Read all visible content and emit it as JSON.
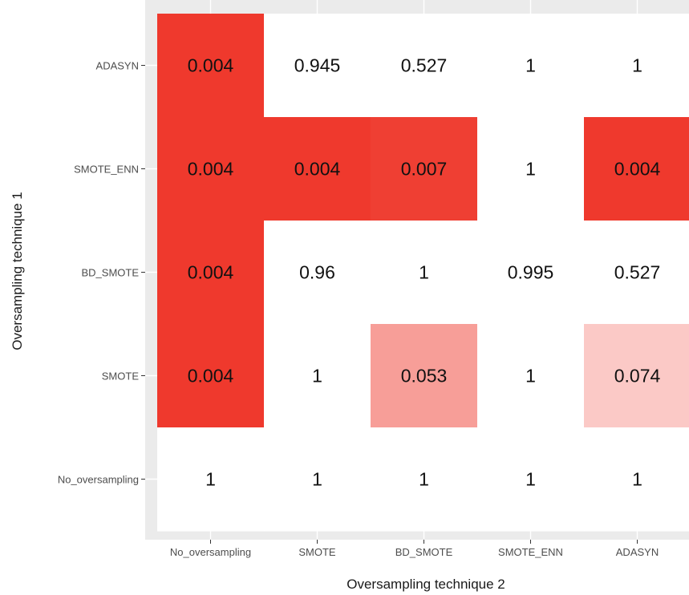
{
  "chart_data": {
    "type": "heatmap",
    "title": "",
    "xlabel": "Oversampling technique 2",
    "ylabel": "Oversampling technique 1",
    "x_categories": [
      "No_oversampling",
      "SMOTE",
      "BD_SMOTE",
      "SMOTE_ENN",
      "ADASYN"
    ],
    "y_categories": [
      "No_oversampling",
      "SMOTE",
      "BD_SMOTE",
      "SMOTE_ENN",
      "ADASYN"
    ],
    "cells": [
      {
        "y": "ADASYN",
        "x": "No_oversampling",
        "value": 0.004,
        "label": "0.004"
      },
      {
        "y": "ADASYN",
        "x": "SMOTE",
        "value": 0.945,
        "label": "0.945"
      },
      {
        "y": "ADASYN",
        "x": "BD_SMOTE",
        "value": 0.527,
        "label": "0.527"
      },
      {
        "y": "ADASYN",
        "x": "SMOTE_ENN",
        "value": 1,
        "label": "1"
      },
      {
        "y": "ADASYN",
        "x": "ADASYN",
        "value": 1,
        "label": "1"
      },
      {
        "y": "SMOTE_ENN",
        "x": "No_oversampling",
        "value": 0.004,
        "label": "0.004"
      },
      {
        "y": "SMOTE_ENN",
        "x": "SMOTE",
        "value": 0.004,
        "label": "0.004"
      },
      {
        "y": "SMOTE_ENN",
        "x": "BD_SMOTE",
        "value": 0.007,
        "label": "0.007"
      },
      {
        "y": "SMOTE_ENN",
        "x": "SMOTE_ENN",
        "value": 1,
        "label": "1"
      },
      {
        "y": "SMOTE_ENN",
        "x": "ADASYN",
        "value": 0.004,
        "label": "0.004"
      },
      {
        "y": "BD_SMOTE",
        "x": "No_oversampling",
        "value": 0.004,
        "label": "0.004"
      },
      {
        "y": "BD_SMOTE",
        "x": "SMOTE",
        "value": 0.96,
        "label": "0.96"
      },
      {
        "y": "BD_SMOTE",
        "x": "BD_SMOTE",
        "value": 1,
        "label": "1"
      },
      {
        "y": "BD_SMOTE",
        "x": "SMOTE_ENN",
        "value": 0.995,
        "label": "0.995"
      },
      {
        "y": "BD_SMOTE",
        "x": "ADASYN",
        "value": 0.527,
        "label": "0.527"
      },
      {
        "y": "SMOTE",
        "x": "No_oversampling",
        "value": 0.004,
        "label": "0.004"
      },
      {
        "y": "SMOTE",
        "x": "SMOTE",
        "value": 1,
        "label": "1"
      },
      {
        "y": "SMOTE",
        "x": "BD_SMOTE",
        "value": 0.053,
        "label": "0.053"
      },
      {
        "y": "SMOTE",
        "x": "SMOTE_ENN",
        "value": 1,
        "label": "1"
      },
      {
        "y": "SMOTE",
        "x": "ADASYN",
        "value": 0.074,
        "label": "0.074"
      },
      {
        "y": "No_oversampling",
        "x": "No_oversampling",
        "value": 1,
        "label": "1"
      },
      {
        "y": "No_oversampling",
        "x": "SMOTE",
        "value": 1,
        "label": "1"
      },
      {
        "y": "No_oversampling",
        "x": "BD_SMOTE",
        "value": 1,
        "label": "1"
      },
      {
        "y": "No_oversampling",
        "x": "SMOTE_ENN",
        "value": 1,
        "label": "1"
      },
      {
        "y": "No_oversampling",
        "x": "ADASYN",
        "value": 1,
        "label": "1"
      }
    ],
    "color_scale": {
      "low_color": "#ee3124",
      "high_color": "#ffffff",
      "min": 0,
      "max": 0.1
    },
    "panel_background": "#ebebeb",
    "grid": true,
    "legend": "none"
  }
}
